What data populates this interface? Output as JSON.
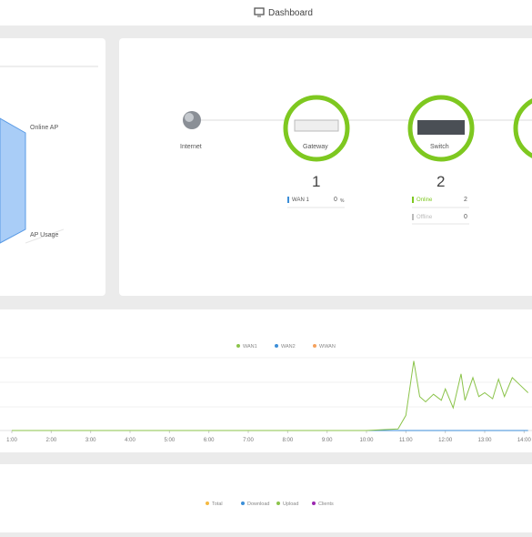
{
  "header": {
    "title": "Dashboard"
  },
  "radar": {
    "labels": [
      "Online AP",
      "AP Usage"
    ]
  },
  "topology": {
    "nodes": [
      {
        "label": "Internet"
      },
      {
        "label": "Gateway",
        "count": 1,
        "stats": [
          {
            "name": "WAN 1",
            "value": 0,
            "unit": "%"
          }
        ]
      },
      {
        "label": "Switch",
        "count": 2,
        "stats": [
          {
            "name": "Online",
            "value": 2
          },
          {
            "name": "Offline",
            "value": 0
          }
        ]
      }
    ]
  },
  "chart_data": {
    "type": "line",
    "x": [
      1,
      2,
      3,
      4,
      5,
      6,
      7,
      8,
      9,
      10,
      10.8,
      11,
      11.2,
      11.35,
      11.5,
      11.7,
      11.9,
      12,
      12.2,
      12.4,
      12.5,
      12.7,
      12.85,
      13,
      13.2,
      13.35,
      13.5,
      13.7,
      13.9,
      14.1
    ],
    "series": [
      {
        "name": "WAN1",
        "color": "#8bc34a",
        "values": [
          0,
          0,
          0,
          0,
          0,
          0,
          0,
          0,
          0,
          0,
          2,
          20,
          92,
          45,
          38,
          48,
          40,
          55,
          30,
          75,
          40,
          70,
          45,
          50,
          42,
          68,
          45,
          70,
          60,
          50
        ]
      },
      {
        "name": "WAN2",
        "color": "#3b8ed8",
        "values": [
          0,
          0,
          0,
          0,
          0,
          0,
          0,
          0,
          0,
          0,
          0,
          0,
          0,
          0,
          0,
          0,
          0,
          0,
          0,
          0,
          0,
          0,
          0,
          0,
          0,
          0,
          0,
          0,
          0,
          0
        ]
      },
      {
        "name": "WWAN",
        "color": "#f5a25d",
        "values": [
          null,
          null,
          null,
          null,
          null,
          null,
          null,
          null,
          null,
          null,
          null,
          null,
          null,
          null,
          null,
          null,
          null,
          null,
          null,
          null,
          null,
          null,
          null,
          null,
          null,
          null,
          null,
          null,
          null,
          null
        ]
      }
    ],
    "xlim": [
      0.7,
      14.2
    ],
    "ylim": [
      0,
      100
    ],
    "xticks": [
      {
        "value": 1,
        "label": "1:00"
      },
      {
        "value": 2,
        "label": "2:00"
      },
      {
        "value": 3,
        "label": "3:00"
      },
      {
        "value": 4,
        "label": "4:00"
      },
      {
        "value": 5,
        "label": "5:00"
      },
      {
        "value": 6,
        "label": "6:00"
      },
      {
        "value": 7,
        "label": "7:00"
      },
      {
        "value": 8,
        "label": "8:00"
      },
      {
        "value": 9,
        "label": "9:00"
      },
      {
        "value": 10,
        "label": "10:00"
      },
      {
        "value": 11,
        "label": "11:00"
      },
      {
        "value": 12,
        "label": "12:00"
      },
      {
        "value": 13,
        "label": "13:00"
      },
      {
        "value": 14,
        "label": "14:00"
      }
    ]
  },
  "usage_legend": [
    {
      "name": "Total",
      "color": "#f5b942"
    },
    {
      "name": "Download",
      "color": "#3b8ed8"
    },
    {
      "name": "Upload",
      "color": "#8bc34a"
    },
    {
      "name": "Clients",
      "color": "#9c27b0"
    }
  ]
}
